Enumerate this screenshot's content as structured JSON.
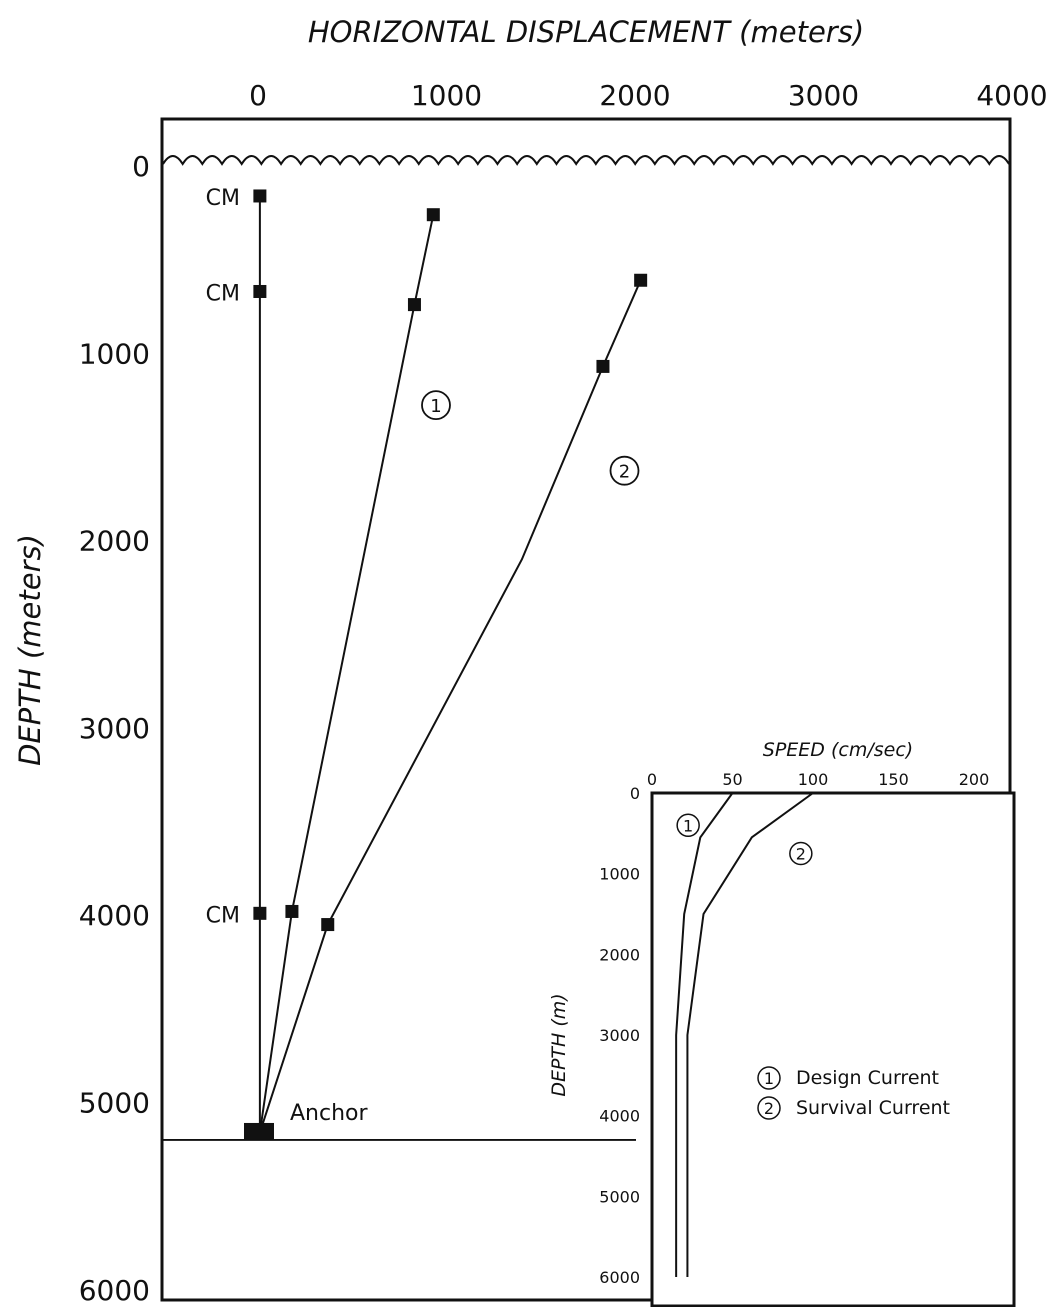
{
  "chart_data": [
    {
      "type": "line",
      "title": "",
      "xlabel": "HORIZONTAL DISPLACEMENT (meters)",
      "ylabel": "DEPTH (meters)",
      "xlim": [
        -500,
        4000
      ],
      "ylim": [
        6000,
        0
      ],
      "x_ticks": [
        "0",
        "1000",
        "2000",
        "3000",
        "4000"
      ],
      "y_ticks": [
        "0",
        "1000",
        "2000",
        "3000",
        "4000",
        "5000",
        "6000"
      ],
      "grid": false,
      "series": [
        {
          "label": "",
          "markers": [
            [
              10,
              160
            ],
            [
              10,
              670
            ],
            [
              10,
              3990
            ]
          ],
          "points": [
            [
              10,
              160
            ],
            [
              10,
              670
            ],
            [
              10,
              3990
            ],
            [
              10,
              5160
            ]
          ]
        },
        {
          "label": "①",
          "markers": [
            [
              930,
              260
            ],
            [
              830,
              740
            ],
            [
              180,
              3980
            ]
          ],
          "points": [
            [
              930,
              260
            ],
            [
              830,
              740
            ],
            [
              180,
              3980
            ],
            [
              10,
              5160
            ]
          ]
        },
        {
          "label": "②",
          "markers": [
            [
              2030,
              610
            ],
            [
              1830,
              1070
            ],
            [
              370,
              4050
            ]
          ],
          "points": [
            [
              2030,
              610
            ],
            [
              1830,
              1070
            ],
            [
              1400,
              2100
            ],
            [
              370,
              4050
            ],
            [
              10,
              5160
            ]
          ]
        }
      ],
      "annotations": {
        "cm_label": "CM",
        "anchor_label": "Anchor",
        "seafloor_depth": 5200,
        "curve_labels": [
          {
            "text": "①",
            "x": 870,
            "y": 1250
          },
          {
            "text": "②",
            "x": 1870,
            "y": 1600
          }
        ]
      }
    },
    {
      "type": "line",
      "title": "",
      "xlabel": "SPEED (cm/sec)",
      "ylabel": "DEPTH (m)",
      "xlim": [
        0,
        225
      ],
      "ylim": [
        6300,
        0
      ],
      "x_ticks": [
        "0",
        "50",
        "100",
        "150",
        "200"
      ],
      "y_ticks": [
        "0",
        "1000",
        "2000",
        "3000",
        "4000",
        "5000",
        "6000"
      ],
      "series": [
        {
          "name": "Design Current",
          "marker_label": "①",
          "points": [
            [
              50,
              0
            ],
            [
              30,
              550
            ],
            [
              20,
              1500
            ],
            [
              15,
              3000
            ],
            [
              15,
              6000
            ]
          ]
        },
        {
          "name": "Survival Current",
          "marker_label": "②",
          "points": [
            [
              100,
              0
            ],
            [
              62,
              550
            ],
            [
              32,
              1500
            ],
            [
              22,
              3000
            ],
            [
              22,
              6000
            ]
          ]
        }
      ],
      "curve_labels": [
        {
          "text": "①",
          "x": 15,
          "y": 400
        },
        {
          "text": "②",
          "x": 85,
          "y": 750
        }
      ],
      "legend": {
        "position": "middle-right"
      }
    }
  ]
}
